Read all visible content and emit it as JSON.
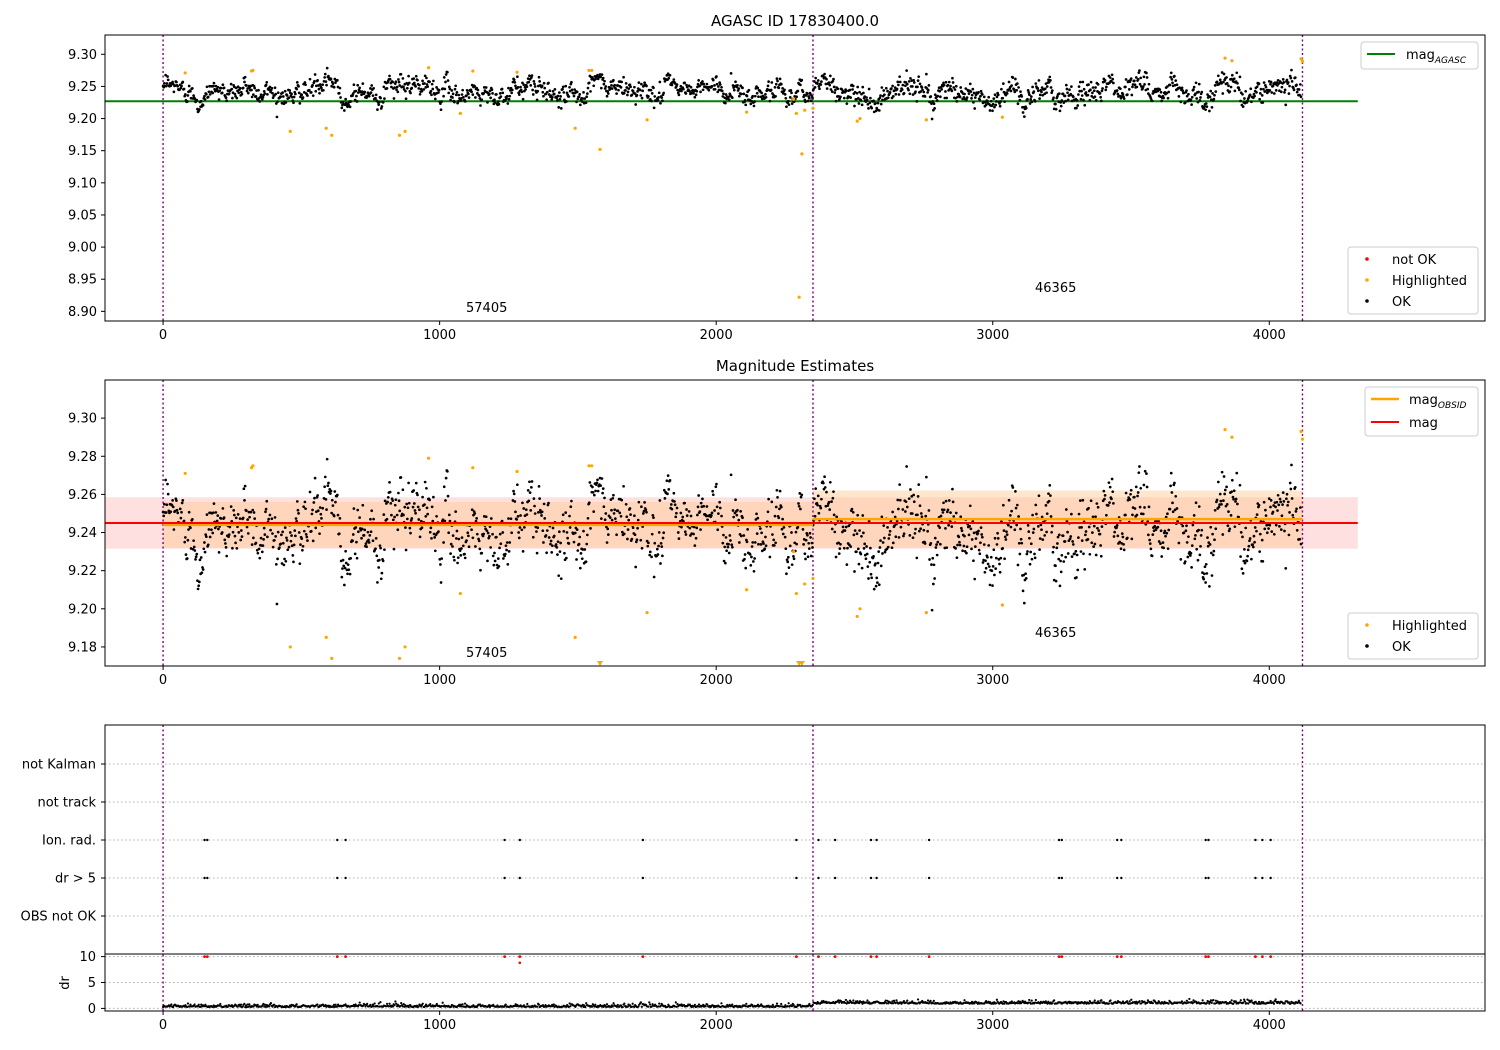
{
  "chart_data": [
    {
      "type": "scatter",
      "title": "AGASC ID 17830400.0",
      "xlim": [
        -210,
        4780
      ],
      "ylim": [
        8.885,
        9.33
      ],
      "x_ticks": [
        "0",
        "1000",
        "2000",
        "3000",
        "4000"
      ],
      "y_ticks": [
        "8.90",
        "8.95",
        "9.00",
        "9.05",
        "9.10",
        "9.15",
        "9.20",
        "9.25",
        "9.30"
      ],
      "legend_top": {
        "mag_main": "mag",
        "mag_sub": "AGASC"
      },
      "legend_bottom": [
        "not OK",
        "Highlighted",
        "OK"
      ],
      "annotations": [
        "57405",
        "46365"
      ],
      "agasc_mag": 9.227,
      "obsid_boundaries": [
        0,
        2350,
        4120
      ],
      "colors": {
        "agasc_line": "#008000",
        "ok": "#000000",
        "highlighted": "#ffa500",
        "not_ok": "#ff0000",
        "boundary": "#800080"
      }
    },
    {
      "type": "scatter",
      "title": "Magnitude Estimates",
      "xlim": [
        -210,
        4780
      ],
      "ylim": [
        9.17,
        9.32
      ],
      "x_ticks": [
        "0",
        "1000",
        "2000",
        "3000",
        "4000"
      ],
      "y_ticks": [
        "9.18",
        "9.20",
        "9.22",
        "9.24",
        "9.26",
        "9.28",
        "9.30"
      ],
      "legend_top": [
        {
          "main": "mag",
          "sub": "OBSID"
        },
        {
          "main": "mag",
          "sub": ""
        }
      ],
      "legend_bottom": [
        "Highlighted",
        "OK"
      ],
      "annotations": [
        "57405",
        "46365"
      ],
      "mag": 9.245,
      "mag_band": [
        9.2315,
        9.2585
      ],
      "obsid_mags": [
        {
          "range": [
            0,
            2350
          ],
          "mag": 9.244,
          "band": [
            9.232,
            9.256
          ]
        },
        {
          "range": [
            2350,
            4120
          ],
          "mag": 9.247,
          "band": [
            9.232,
            9.262
          ]
        }
      ],
      "colors": {
        "mag_obsid": "#ffa500",
        "mag": "#ff0000",
        "band": "#ffcccc",
        "ok": "#000000",
        "highlighted": "#ffa500"
      }
    },
    {
      "type": "scatter",
      "title": "",
      "xlim": [
        -210,
        4780
      ],
      "x_ticks": [
        "0",
        "1000",
        "2000",
        "3000",
        "4000"
      ],
      "flag_labels": [
        "not Kalman",
        "not track",
        "Ion. rad.",
        "dr > 5",
        "OBS not OK"
      ],
      "flag_events": [
        150,
        160,
        630,
        660,
        1235,
        1290,
        1735,
        2290,
        2370,
        2430,
        2560,
        2580,
        2770,
        3240,
        3250,
        3450,
        3465,
        3770,
        3780,
        3950,
        3975,
        4005
      ],
      "ylabel": "dr",
      "dr_ticks": [
        "0",
        "5",
        "10"
      ],
      "dr_ylim": [
        -0.5,
        10.5
      ]
    }
  ]
}
